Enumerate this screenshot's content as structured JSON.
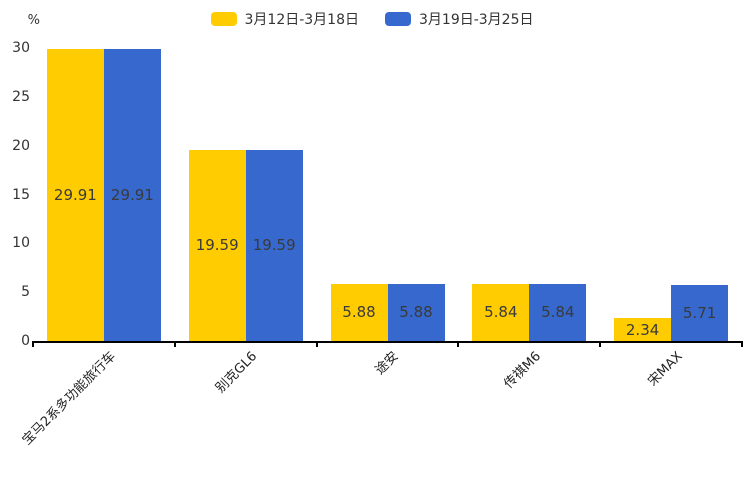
{
  "legend": {
    "items": [
      {
        "label": "3月12日-3月18日",
        "color": "#FECC00"
      },
      {
        "label": "3月19日-3月25日",
        "color": "#3668CD"
      }
    ]
  },
  "chart_data": {
    "type": "bar",
    "title": "",
    "unit_label": "%",
    "categories": [
      "宝马2系多功能旅行车",
      "别克GL6",
      "途安",
      "传祺M6",
      "宋MAX"
    ],
    "series": [
      {
        "name": "3月12日-3月18日",
        "color": "#FECC00",
        "values": [
          29.91,
          19.59,
          5.88,
          5.84,
          2.34
        ]
      },
      {
        "name": "3月19日-3月25日",
        "color": "#3668CD",
        "values": [
          29.91,
          19.59,
          5.88,
          5.84,
          5.71
        ]
      }
    ],
    "y_axis": {
      "min": 0,
      "max": 30,
      "tick_interval": 5,
      "ticks": [
        0,
        5,
        10,
        15,
        20,
        25,
        30
      ]
    },
    "grid": false,
    "legend_position": "top",
    "value_labels": true
  },
  "colors": {
    "background": "#ffffff",
    "axis_line": "#000000",
    "tick_text": "#333333",
    "value_text": "#3a3a3a"
  }
}
